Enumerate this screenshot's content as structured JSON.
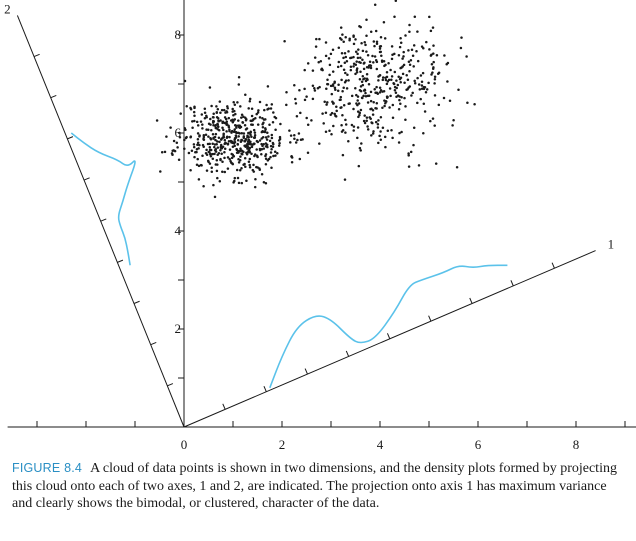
{
  "chart_data": {
    "type": "scatter",
    "title": "",
    "xlabel": "",
    "ylabel": "",
    "xlim": [
      -3.6,
      9.3
    ],
    "ylim": [
      0,
      8.9
    ],
    "x_ticks": [
      0,
      2,
      4,
      6,
      8
    ],
    "y_ticks": [
      2,
      4,
      6,
      8
    ],
    "grid": false,
    "legend": "none",
    "clusters": [
      {
        "center": [
          1.0,
          5.9
        ],
        "spread": [
          0.55,
          0.4
        ],
        "count": 520,
        "seed": 11
      },
      {
        "center": [
          3.8,
          7.0
        ],
        "spread": [
          0.75,
          0.65
        ],
        "count": 470,
        "seed": 29
      }
    ],
    "projection_axes": [
      {
        "name": "1",
        "from": [
          0,
          0
        ],
        "to": [
          8.4,
          3.6
        ],
        "ticks": [
          1,
          2,
          3,
          4,
          5,
          6,
          7,
          8,
          9
        ]
      },
      {
        "name": "2",
        "from": [
          0,
          0
        ],
        "to": [
          -3.4,
          8.4
        ],
        "ticks": [
          1,
          2,
          3,
          4,
          5,
          6,
          7,
          8,
          9
        ]
      }
    ],
    "density_curves": [
      {
        "axis": "1",
        "points": [
          [
            1.75,
            0.8
          ],
          [
            2.0,
            1.45
          ],
          [
            2.3,
            2.05
          ],
          [
            2.7,
            2.3
          ],
          [
            3.0,
            2.2
          ],
          [
            3.4,
            1.8
          ],
          [
            3.6,
            1.7
          ],
          [
            3.9,
            1.8
          ],
          [
            4.3,
            2.35
          ],
          [
            4.6,
            2.9
          ],
          [
            4.85,
            3.0
          ],
          [
            5.3,
            3.15
          ],
          [
            5.6,
            3.3
          ],
          [
            5.9,
            3.25
          ],
          [
            6.2,
            3.3
          ],
          [
            6.6,
            3.3
          ]
        ]
      },
      {
        "axis": "2",
        "points": [
          [
            -2.3,
            6.0
          ],
          [
            -2.05,
            5.8
          ],
          [
            -1.75,
            5.6
          ],
          [
            -1.35,
            5.45
          ],
          [
            -1.15,
            5.3
          ],
          [
            -0.95,
            5.5
          ],
          [
            -1.15,
            4.95
          ],
          [
            -1.25,
            4.6
          ],
          [
            -1.35,
            4.3
          ],
          [
            -1.3,
            4.1
          ],
          [
            -1.2,
            3.85
          ],
          [
            -1.15,
            3.6
          ],
          [
            -1.1,
            3.3
          ]
        ]
      }
    ],
    "curve_color": "#5bc2ea",
    "point_color": "#1a1a1a"
  },
  "axes": {
    "x_tick_labels": [
      "0",
      "2",
      "4",
      "6",
      "8"
    ],
    "y_tick_labels": [
      "2",
      "4",
      "6",
      "8"
    ],
    "axis1_label": "1",
    "axis2_label": "2"
  },
  "caption": {
    "label": "FIGURE 8.4",
    "text": "A cloud of data points is shown in two dimensions, and the density plots formed by projecting this cloud onto each of two axes, 1 and 2, are indicated. The projection onto axis 1 has maximum variance and clearly shows the bimodal, or clustered, character of the data.",
    "label_color": "#2a8fc4"
  }
}
